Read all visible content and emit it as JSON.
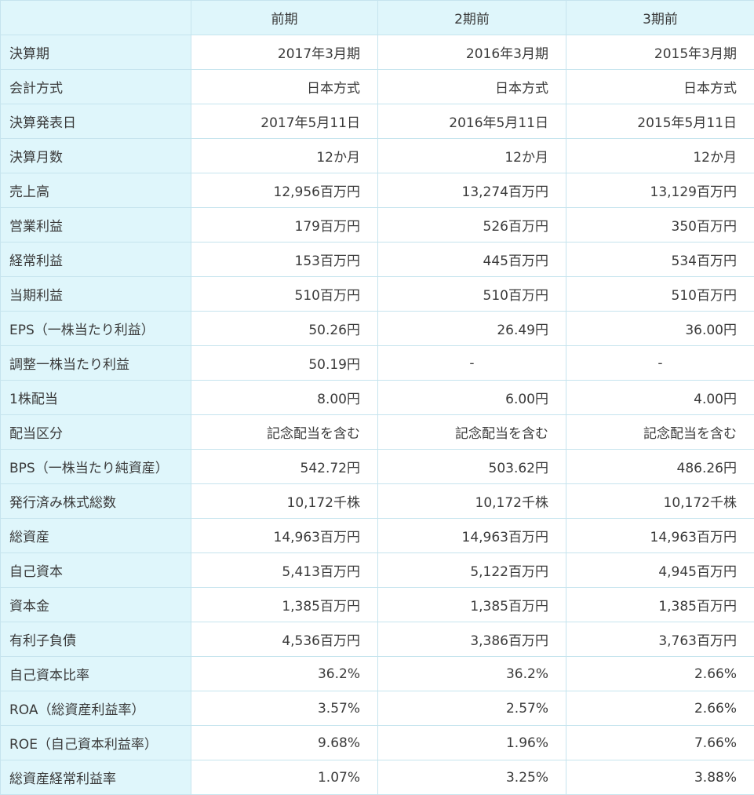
{
  "header": {
    "corner": "",
    "periods": [
      "前期",
      "2期前",
      "3期前"
    ]
  },
  "rows": [
    {
      "label": "決算期",
      "values": [
        "2017年3月期",
        "2016年3月期",
        "2015年3月期"
      ]
    },
    {
      "label": "会計方式",
      "values": [
        "日本方式",
        "日本方式",
        "日本方式"
      ]
    },
    {
      "label": "決算発表日",
      "values": [
        "2017年5月11日",
        "2016年5月11日",
        "2015年5月11日"
      ]
    },
    {
      "label": "決算月数",
      "values": [
        "12か月",
        "12か月",
        "12か月"
      ]
    },
    {
      "label": "売上高",
      "values": [
        "12,956百万円",
        "13,274百万円",
        "13,129百万円"
      ]
    },
    {
      "label": "営業利益",
      "values": [
        "179百万円",
        "526百万円",
        "350百万円"
      ]
    },
    {
      "label": "経常利益",
      "values": [
        "153百万円",
        "445百万円",
        "534百万円"
      ]
    },
    {
      "label": "当期利益",
      "values": [
        "510百万円",
        "510百万円",
        "510百万円"
      ]
    },
    {
      "label": "EPS（一株当たり利益）",
      "values": [
        "50.26円",
        "26.49円",
        "36.00円"
      ]
    },
    {
      "label": "調整一株当たり利益",
      "values": [
        "50.19円",
        "-",
        "-"
      ]
    },
    {
      "label": "1株配当",
      "values": [
        "8.00円",
        "6.00円",
        "4.00円"
      ]
    },
    {
      "label": "配当区分",
      "values": [
        "記念配当を含む",
        "記念配当を含む",
        "記念配当を含む"
      ]
    },
    {
      "label": "BPS（一株当たり純資産）",
      "values": [
        "542.72円",
        "503.62円",
        "486.26円"
      ]
    },
    {
      "label": "発行済み株式総数",
      "values": [
        "10,172千株",
        "10,172千株",
        "10,172千株"
      ]
    },
    {
      "label": "総資産",
      "values": [
        "14,963百万円",
        "14,963百万円",
        "14,963百万円"
      ]
    },
    {
      "label": "自己資本",
      "values": [
        "5,413百万円",
        "5,122百万円",
        "4,945百万円"
      ]
    },
    {
      "label": "資本金",
      "values": [
        "1,385百万円",
        "1,385百万円",
        "1,385百万円"
      ]
    },
    {
      "label": "有利子負債",
      "values": [
        "4,536百万円",
        "3,386百万円",
        "3,763百万円"
      ]
    },
    {
      "label": "自己資本比率",
      "values": [
        "36.2%",
        "36.2%",
        "2.66%"
      ]
    },
    {
      "label": "ROA（総資産利益率）",
      "values": [
        "3.57%",
        "2.57%",
        "2.66%"
      ]
    },
    {
      "label": "ROE（自己資本利益率）",
      "values": [
        "9.68%",
        "1.96%",
        "7.66%"
      ]
    },
    {
      "label": "総資産経常利益率",
      "values": [
        "1.07%",
        "3.25%",
        "3.88%"
      ]
    }
  ],
  "colors": {
    "header_bg": "#dff6fb",
    "border": "#c6e4ee",
    "text": "#3a3a3a"
  }
}
